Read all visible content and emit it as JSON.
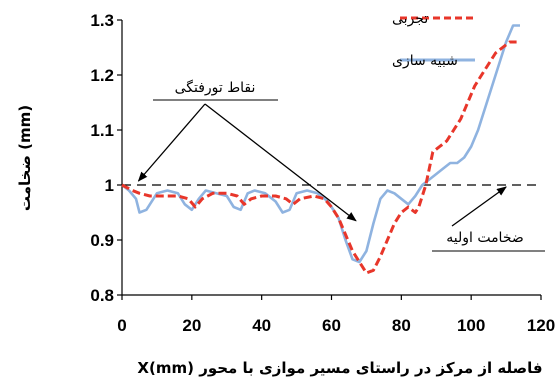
{
  "chart_data": {
    "type": "line",
    "title": "",
    "xlabel": "X(mm) فاصله از مرکز در راستای مسیر موازی با محور",
    "ylabel": "ضخامت (mm)",
    "xlim": [
      0,
      120
    ],
    "ylim": [
      0.8,
      1.3
    ],
    "xticks": [
      "0",
      "20",
      "40",
      "60",
      "80",
      "100",
      "120"
    ],
    "yticks": [
      "0.8",
      "0.9",
      "1",
      "1.1",
      "1.2",
      "1.3"
    ],
    "grid": false,
    "legend_position": "top-right",
    "series": [
      {
        "name": "تجربی",
        "color": "#e8362a",
        "style": "dashed",
        "x": [
          0,
          3,
          5,
          8,
          12,
          16,
          19,
          21,
          23,
          26,
          30,
          33,
          35,
          37,
          40,
          44,
          47,
          49,
          51,
          55,
          58,
          60,
          62,
          64,
          66,
          68,
          70,
          72,
          74,
          76,
          78,
          80,
          82,
          84,
          85,
          87,
          89,
          91,
          93,
          95,
          97,
          99,
          101,
          103,
          105,
          107,
          109,
          111,
          113
        ],
        "y": [
          1.0,
          0.99,
          0.985,
          0.98,
          0.98,
          0.98,
          0.975,
          0.96,
          0.975,
          0.985,
          0.985,
          0.98,
          0.965,
          0.975,
          0.98,
          0.98,
          0.975,
          0.965,
          0.975,
          0.98,
          0.975,
          0.96,
          0.94,
          0.91,
          0.88,
          0.86,
          0.84,
          0.845,
          0.87,
          0.9,
          0.93,
          0.95,
          0.96,
          0.95,
          0.96,
          1.0,
          1.06,
          1.07,
          1.08,
          1.1,
          1.12,
          1.15,
          1.18,
          1.2,
          1.22,
          1.24,
          1.25,
          1.26,
          1.26
        ]
      },
      {
        "name": "شبیه سازی",
        "color": "#8fb3e0",
        "style": "solid",
        "x": [
          0,
          2,
          4,
          5,
          7,
          10,
          13,
          16,
          18,
          20,
          22,
          24,
          27,
          30,
          32,
          34,
          36,
          38,
          41,
          44,
          46,
          48,
          50,
          53,
          56,
          59,
          62,
          64,
          66,
          68,
          70,
          72,
          74,
          76,
          78,
          80,
          82,
          84,
          86,
          88,
          90,
          92,
          94,
          96,
          98,
          100,
          102,
          104,
          106,
          108,
          110,
          112,
          114
        ],
        "y": [
          1.0,
          0.99,
          0.975,
          0.95,
          0.955,
          0.985,
          0.99,
          0.985,
          0.965,
          0.955,
          0.975,
          0.99,
          0.985,
          0.98,
          0.96,
          0.955,
          0.985,
          0.99,
          0.985,
          0.97,
          0.95,
          0.955,
          0.985,
          0.99,
          0.985,
          0.97,
          0.94,
          0.9,
          0.865,
          0.86,
          0.88,
          0.93,
          0.975,
          0.99,
          0.985,
          0.975,
          0.965,
          0.98,
          1.0,
          1.01,
          1.02,
          1.03,
          1.04,
          1.04,
          1.05,
          1.07,
          1.1,
          1.14,
          1.18,
          1.22,
          1.26,
          1.29,
          1.29
        ]
      }
    ],
    "reference_line": {
      "y": 1.0,
      "style": "dashed",
      "color": "#000000"
    },
    "annotations": [
      {
        "label": "نقاط تورفتگی",
        "target": [
          [
            3,
            1.0
          ],
          [
            67,
            0.935
          ]
        ]
      },
      {
        "label": "ضخامت اولیه",
        "target": [
          [
            110,
            1.0
          ]
        ]
      }
    ]
  }
}
